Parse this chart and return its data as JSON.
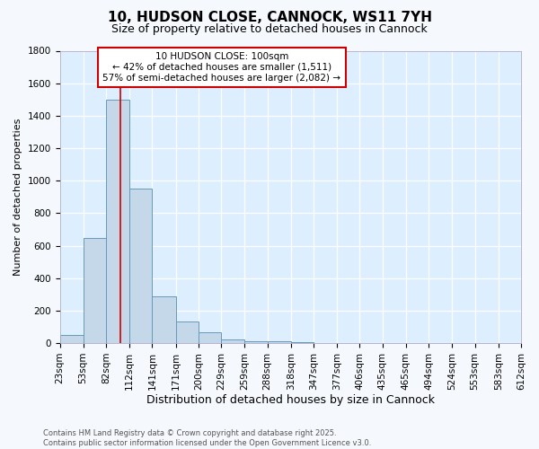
{
  "title1": "10, HUDSON CLOSE, CANNOCK, WS11 7YH",
  "title2": "Size of property relative to detached houses in Cannock",
  "xlabel": "Distribution of detached houses by size in Cannock",
  "ylabel": "Number of detached properties",
  "bin_edges": [
    23,
    53,
    82,
    112,
    141,
    171,
    200,
    229,
    259,
    288,
    318,
    347,
    377,
    406,
    435,
    465,
    494,
    524,
    553,
    583,
    612
  ],
  "bar_heights": [
    50,
    650,
    1500,
    950,
    290,
    135,
    65,
    25,
    10,
    10,
    5,
    0,
    0,
    0,
    0,
    0,
    0,
    0,
    0,
    0
  ],
  "bar_color": "#c5d8ea",
  "bar_edge_color": "#6699bb",
  "vline_x": 100,
  "vline_color": "#cc0000",
  "annotation_title": "10 HUDSON CLOSE: 100sqm",
  "annotation_line1": "← 42% of detached houses are smaller (1,511)",
  "annotation_line2": "57% of semi-detached houses are larger (2,082) →",
  "annotation_box_color": "#cc0000",
  "ylim": [
    0,
    1800
  ],
  "yticks": [
    0,
    200,
    400,
    600,
    800,
    1000,
    1200,
    1400,
    1600,
    1800
  ],
  "plot_bg_color": "#ddeeff",
  "fig_bg_color": "#f5f8fc",
  "grid_color": "#ffffff",
  "footer1": "Contains HM Land Registry data © Crown copyright and database right 2025.",
  "footer2": "Contains public sector information licensed under the Open Government Licence v3.0.",
  "title1_fontsize": 11,
  "title2_fontsize": 9,
  "xlabel_fontsize": 9,
  "ylabel_fontsize": 8,
  "tick_fontsize": 7.5,
  "footer_fontsize": 6,
  "annotation_fontsize": 7.5
}
